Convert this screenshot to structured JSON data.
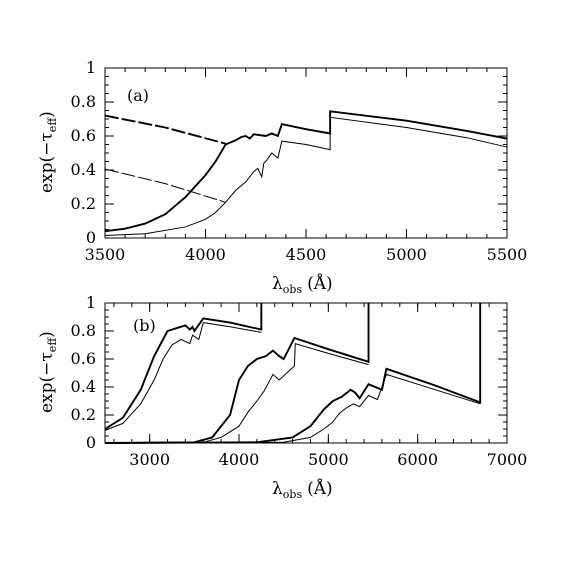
{
  "chart_data": [
    {
      "type": "line",
      "panel_label": "(a)",
      "xlim": [
        3500,
        5500
      ],
      "ylim": [
        0,
        1
      ],
      "xticks": [
        3500,
        4000,
        4500,
        5000,
        5500
      ],
      "yticks": [
        0,
        0.2,
        0.4,
        0.6,
        0.8,
        1
      ],
      "xlabel_main": "λ",
      "xlabel_sub": "obs",
      "xlabel_unit": "(Å)",
      "ylabel_main": "exp(−τ",
      "ylabel_sub": "eff",
      "ylabel_close": ")",
      "grid": false,
      "series": [
        {
          "style": "solid-bold",
          "points": [
            [
              3500,
              0.04
            ],
            [
              3600,
              0.055
            ],
            [
              3700,
              0.085
            ],
            [
              3800,
              0.14
            ],
            [
              3900,
              0.24
            ],
            [
              4000,
              0.37
            ],
            [
              4050,
              0.45
            ],
            [
              4100,
              0.55
            ],
            [
              4150,
              0.575
            ],
            [
              4180,
              0.595
            ],
            [
              4200,
              0.6
            ],
            [
              4220,
              0.585
            ],
            [
              4240,
              0.61
            ],
            [
              4300,
              0.6
            ],
            [
              4330,
              0.615
            ],
            [
              4360,
              0.6
            ],
            [
              4380,
              0.67
            ],
            [
              4500,
              0.64
            ],
            [
              4620,
              0.615
            ],
            [
              4620,
              0.745
            ],
            [
              5000,
              0.69
            ],
            [
              5300,
              0.63
            ],
            [
              5500,
              0.585
            ]
          ]
        },
        {
          "style": "solid",
          "points": [
            [
              3500,
              0.015
            ],
            [
              3700,
              0.025
            ],
            [
              3900,
              0.065
            ],
            [
              4000,
              0.11
            ],
            [
              4050,
              0.15
            ],
            [
              4100,
              0.21
            ],
            [
              4150,
              0.28
            ],
            [
              4200,
              0.33
            ],
            [
              4220,
              0.36
            ],
            [
              4240,
              0.39
            ],
            [
              4260,
              0.41
            ],
            [
              4280,
              0.36
            ],
            [
              4290,
              0.44
            ],
            [
              4300,
              0.45
            ],
            [
              4330,
              0.5
            ],
            [
              4360,
              0.47
            ],
            [
              4380,
              0.57
            ],
            [
              4500,
              0.55
            ],
            [
              4620,
              0.52
            ],
            [
              4620,
              0.71
            ],
            [
              5000,
              0.65
            ],
            [
              5300,
              0.59
            ],
            [
              5500,
              0.535
            ]
          ]
        },
        {
          "style": "dashed-bold",
          "points": [
            [
              3500,
              0.72
            ],
            [
              3800,
              0.65
            ],
            [
              4100,
              0.555
            ]
          ]
        },
        {
          "style": "dashed",
          "points": [
            [
              3500,
              0.405
            ],
            [
              3800,
              0.32
            ],
            [
              4100,
              0.21
            ]
          ]
        }
      ]
    },
    {
      "type": "line",
      "panel_label": "(b)",
      "xlim": [
        2500,
        7000
      ],
      "ylim": [
        0,
        1
      ],
      "xticks": [
        3000,
        4000,
        5000,
        6000,
        7000
      ],
      "yticks": [
        0,
        0.2,
        0.4,
        0.6,
        0.8,
        1
      ],
      "xlabel_main": "λ",
      "xlabel_sub": "obs",
      "xlabel_unit": "(Å)",
      "ylabel_main": "exp(−τ",
      "ylabel_sub": "eff",
      "ylabel_close": ")",
      "grid": false,
      "series": [
        {
          "style": "solid-bold",
          "points": [
            [
              2500,
              0.1
            ],
            [
              2700,
              0.18
            ],
            [
              2900,
              0.38
            ],
            [
              3050,
              0.62
            ],
            [
              3200,
              0.8
            ],
            [
              3300,
              0.82
            ],
            [
              3400,
              0.84
            ],
            [
              3450,
              0.81
            ],
            [
              3480,
              0.83
            ],
            [
              3500,
              0.8
            ],
            [
              3600,
              0.89
            ],
            [
              3900,
              0.86
            ],
            [
              4250,
              0.81
            ],
            [
              4250,
              1.0
            ]
          ]
        },
        {
          "style": "solid",
          "points": [
            [
              2500,
              0.09
            ],
            [
              2700,
              0.14
            ],
            [
              2900,
              0.28
            ],
            [
              3050,
              0.45
            ],
            [
              3150,
              0.6
            ],
            [
              3250,
              0.7
            ],
            [
              3350,
              0.74
            ],
            [
              3450,
              0.71
            ],
            [
              3480,
              0.77
            ],
            [
              3550,
              0.74
            ],
            [
              3600,
              0.86
            ],
            [
              3900,
              0.83
            ],
            [
              4250,
              0.79
            ]
          ]
        },
        {
          "style": "solid-bold",
          "points": [
            [
              2500,
              0.0
            ],
            [
              3500,
              0.005
            ],
            [
              3700,
              0.04
            ],
            [
              3900,
              0.2
            ],
            [
              4000,
              0.45
            ],
            [
              4100,
              0.55
            ],
            [
              4200,
              0.6
            ],
            [
              4300,
              0.62
            ],
            [
              4380,
              0.66
            ],
            [
              4450,
              0.62
            ],
            [
              4500,
              0.6
            ],
            [
              4620,
              0.75
            ],
            [
              5000,
              0.67
            ],
            [
              5450,
              0.58
            ],
            [
              5450,
              1.0
            ]
          ]
        },
        {
          "style": "solid",
          "points": [
            [
              2500,
              0.0
            ],
            [
              3600,
              0.005
            ],
            [
              3800,
              0.04
            ],
            [
              4000,
              0.12
            ],
            [
              4100,
              0.22
            ],
            [
              4200,
              0.3
            ],
            [
              4280,
              0.37
            ],
            [
              4330,
              0.43
            ],
            [
              4380,
              0.49
            ],
            [
              4450,
              0.45
            ],
            [
              4620,
              0.55
            ],
            [
              4630,
              0.71
            ],
            [
              5000,
              0.64
            ],
            [
              5450,
              0.56
            ]
          ]
        },
        {
          "style": "solid-bold",
          "points": [
            [
              2500,
              0.0
            ],
            [
              4200,
              0.005
            ],
            [
              4600,
              0.04
            ],
            [
              4800,
              0.12
            ],
            [
              4950,
              0.24
            ],
            [
              5050,
              0.3
            ],
            [
              5150,
              0.33
            ],
            [
              5250,
              0.38
            ],
            [
              5300,
              0.36
            ],
            [
              5350,
              0.32
            ],
            [
              5450,
              0.42
            ],
            [
              5600,
              0.38
            ],
            [
              5650,
              0.53
            ],
            [
              6200,
              0.41
            ],
            [
              6700,
              0.29
            ],
            [
              6700,
              1.0
            ]
          ]
        },
        {
          "style": "solid",
          "points": [
            [
              2500,
              0.0
            ],
            [
              4500,
              0.005
            ],
            [
              4800,
              0.04
            ],
            [
              4950,
              0.1
            ],
            [
              5050,
              0.15
            ],
            [
              5120,
              0.21
            ],
            [
              5200,
              0.25
            ],
            [
              5280,
              0.28
            ],
            [
              5350,
              0.26
            ],
            [
              5450,
              0.34
            ],
            [
              5550,
              0.31
            ],
            [
              5650,
              0.49
            ],
            [
              6200,
              0.38
            ],
            [
              6700,
              0.28
            ]
          ]
        }
      ]
    }
  ]
}
